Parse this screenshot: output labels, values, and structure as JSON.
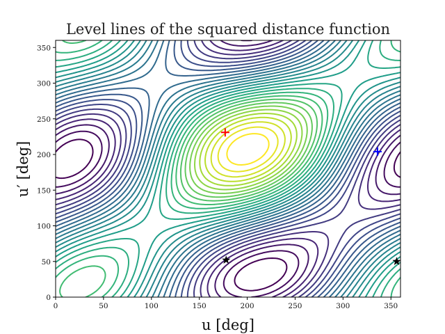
{
  "chart_data": {
    "type": "contour",
    "title": "Level lines of the squared distance function",
    "xlabel": "u [deg]",
    "ylabel": "u′ [deg]",
    "xlim": [
      0,
      360
    ],
    "ylim": [
      0,
      360
    ],
    "xticks": [
      0,
      50,
      100,
      150,
      200,
      250,
      300,
      350
    ],
    "yticks": [
      0,
      50,
      100,
      150,
      200,
      250,
      300,
      350
    ],
    "colormap": "viridis",
    "grid": false,
    "levels": 30,
    "markers": [
      {
        "name": "maximum",
        "symbol": "plus",
        "color": "#ff0000",
        "x": 177,
        "y": 231
      },
      {
        "name": "saddle",
        "symbol": "plus",
        "color": "#0000ff",
        "x": 336,
        "y": 204
      },
      {
        "name": "minimum",
        "symbol": "star",
        "color": "#000000",
        "x": 178,
        "y": 52
      },
      {
        "name": "minimum",
        "symbol": "star",
        "color": "#000000",
        "x": 356,
        "y": 50
      }
    ]
  }
}
